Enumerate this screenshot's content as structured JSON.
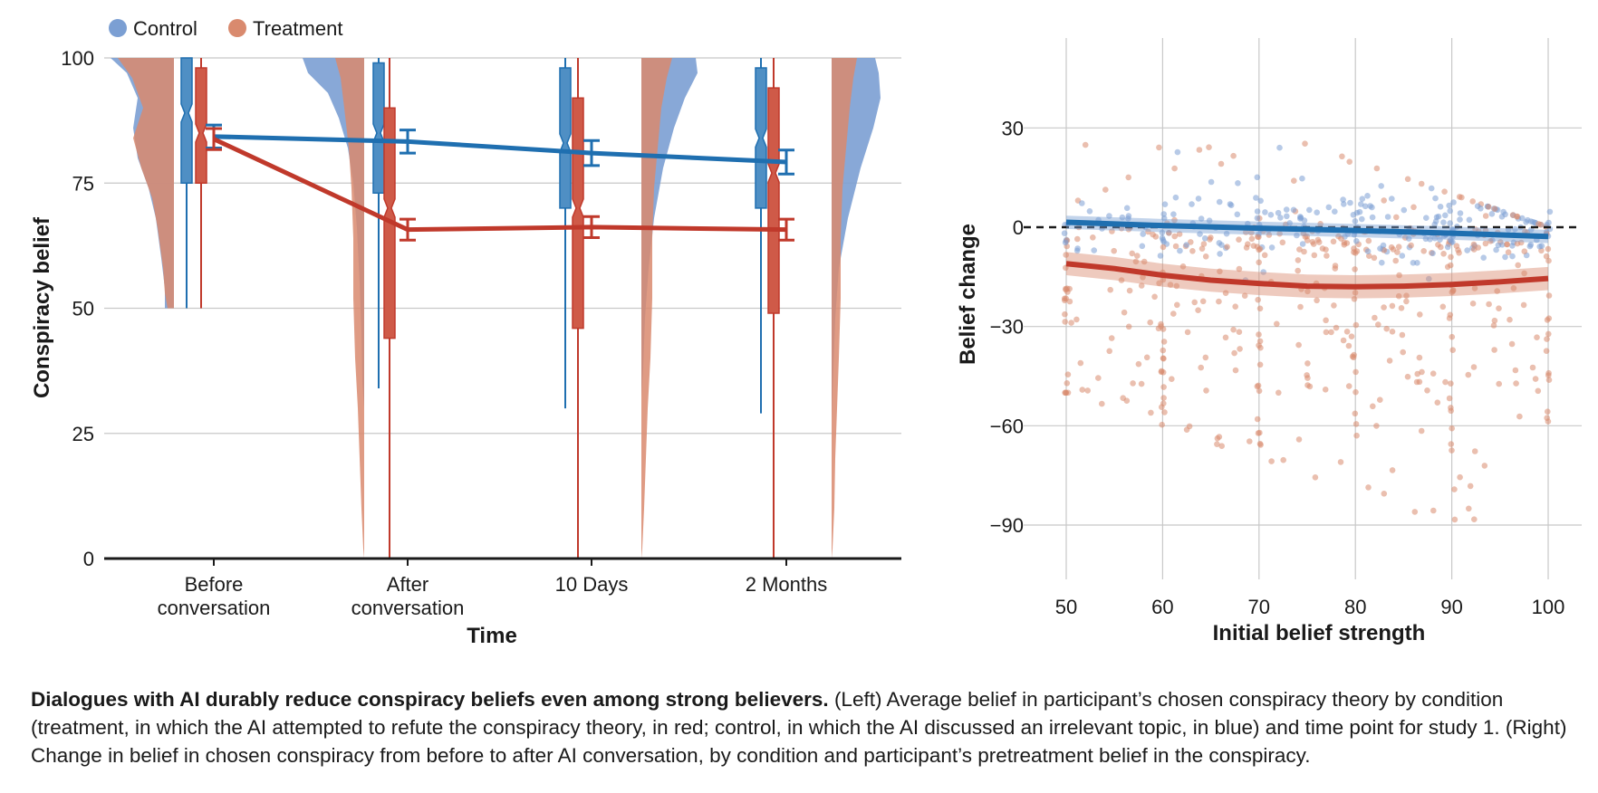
{
  "chart_data": [
    {
      "type": "box-violin-line",
      "legend": [
        {
          "name": "Control",
          "color": "#7b9fd3"
        },
        {
          "name": "Treatment",
          "color": "#d98a6e"
        }
      ],
      "legend_position": "top-left",
      "categories": [
        "Before\nconversation",
        "After\nconversation",
        "10 Days",
        "2 Months"
      ],
      "xlabel": "Time",
      "ylabel": "Conspiracy belief",
      "ylim": [
        0,
        100
      ],
      "yticks": [
        0,
        25,
        50,
        75,
        100
      ],
      "grid": true,
      "series": [
        {
          "name": "Control",
          "line_color": "#1f6fb0",
          "means": [
            84.3,
            83.3,
            81.0,
            79.2
          ],
          "ci": [
            [
              82.0,
              86.6
            ],
            [
              81.0,
              85.6
            ],
            [
              78.5,
              83.5
            ],
            [
              76.8,
              81.6
            ]
          ],
          "box": [
            {
              "whisker_low": 50,
              "q1": 75,
              "median": 89,
              "q3": 100,
              "whisker_high": 100
            },
            {
              "whisker_low": 34,
              "q1": 73,
              "median": 85,
              "q3": 99,
              "whisker_high": 100
            },
            {
              "whisker_low": 30,
              "q1": 70,
              "median": 83,
              "q3": 98,
              "whisker_high": 100
            },
            {
              "whisker_low": 29,
              "q1": 70,
              "median": 84,
              "q3": 98,
              "whisker_high": 100
            }
          ]
        },
        {
          "name": "Treatment",
          "line_color": "#c0392b",
          "means": [
            83.8,
            65.7,
            66.2,
            65.7
          ],
          "ci": [
            [
              81.7,
              85.9
            ],
            [
              63.6,
              67.8
            ],
            [
              64.1,
              68.3
            ],
            [
              63.6,
              67.8
            ]
          ],
          "box": [
            {
              "whisker_low": 50,
              "q1": 75,
              "median": 85,
              "q3": 98,
              "whisker_high": 100
            },
            {
              "whisker_low": 0,
              "q1": 44,
              "median": 70,
              "q3": 90,
              "whisker_high": 100
            },
            {
              "whisker_low": 0,
              "q1": 46,
              "median": 70,
              "q3": 92,
              "whisker_high": 100
            },
            {
              "whisker_low": 0,
              "q1": 49,
              "median": 77,
              "q3": 94,
              "whisker_high": 100
            }
          ]
        }
      ]
    },
    {
      "type": "scatter",
      "xlabel": "Initial belief strength",
      "ylabel": "Belief change",
      "xlim": [
        48,
        102
      ],
      "ylim": [
        -102,
        52
      ],
      "xticks": [
        50,
        60,
        70,
        80,
        90,
        100
      ],
      "yticks": [
        30,
        0,
        -30,
        -60,
        -90
      ],
      "grid": true,
      "reference_line_y": 0,
      "series": [
        {
          "name": "Control",
          "color": "#7b9fd3",
          "line_color": "#1f6fb0",
          "trend": {
            "x": [
              50,
              60,
              70,
              80,
              90,
              100
            ],
            "y": [
              1.5,
              0.5,
              -0.3,
              -1.0,
              -1.8,
              -2.8
            ]
          }
        },
        {
          "name": "Treatment",
          "color": "#d98a6e",
          "line_color": "#c0392b",
          "trend": {
            "x": [
              50,
              55,
              60,
              65,
              70,
              75,
              80,
              85,
              90,
              95,
              100
            ],
            "y": [
              -11,
              -12.5,
              -14.5,
              -16,
              -17,
              -17.8,
              -18,
              -17.8,
              -17.3,
              -16.5,
              -15.5
            ]
          }
        }
      ]
    }
  ],
  "caption": {
    "bold": "Dialogues with AI durably reduce conspiracy beliefs even among strong believers.",
    "text": " (Left) Average belief in participant’s chosen conspiracy theory by condition (treatment, in which the AI attempted to refute the conspiracy theory, in red; control, in which the AI discussed an irrelevant topic, in blue) and time point for study 1. (Right) Change in belief in chosen conspiracy from before to after AI conversation, by condition and participant’s pretreatment belief in the conspiracy."
  }
}
